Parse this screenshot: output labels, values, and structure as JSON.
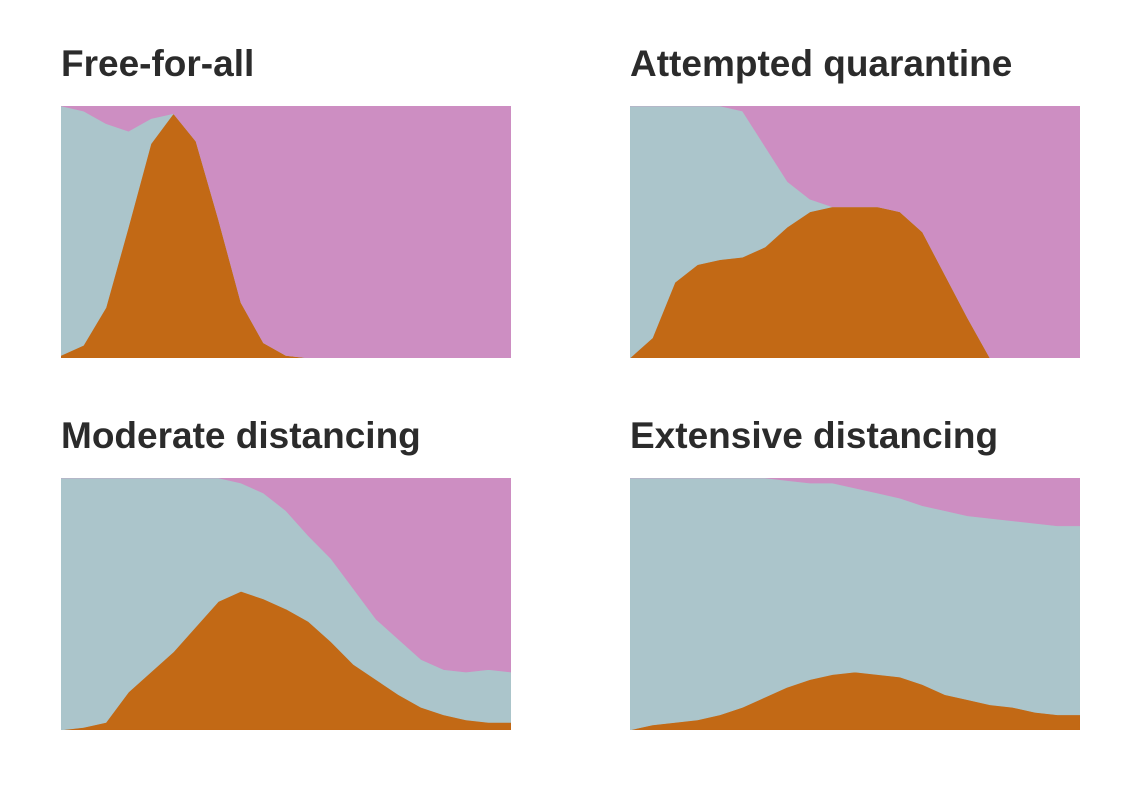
{
  "colors": {
    "sick": "#c26915",
    "healthy": "#abc5cb",
    "recovered": "#cd8ec2"
  },
  "chart_data": [
    {
      "type": "area",
      "stacked": true,
      "normalized": true,
      "title": "Free-for-all",
      "xlabel": "",
      "ylabel": "",
      "ylim": [
        0,
        1
      ],
      "grid": false,
      "x": [
        0,
        5,
        10,
        15,
        20,
        25,
        30,
        35,
        40,
        45,
        50,
        55,
        60,
        65,
        70,
        75,
        80,
        85,
        90,
        95,
        100
      ],
      "series": [
        {
          "values": [
            0.01,
            0.05,
            0.2,
            0.52,
            0.85,
            0.97,
            0.86,
            0.55,
            0.22,
            0.06,
            0.01,
            0.0,
            0.0,
            0.0,
            0.0,
            0.0,
            0.0,
            0.0,
            0.0,
            0.0,
            0.0
          ]
        },
        {
          "values": [
            0.99,
            0.93,
            0.73,
            0.38,
            0.1,
            0.0,
            0.0,
            0.0,
            0.0,
            0.0,
            0.0,
            0.0,
            0.0,
            0.0,
            0.0,
            0.0,
            0.0,
            0.0,
            0.0,
            0.0,
            0.0
          ]
        },
        {
          "values": [
            0.0,
            0.02,
            0.07,
            0.1,
            0.05,
            0.03,
            0.14,
            0.45,
            0.78,
            0.94,
            0.99,
            1.0,
            1.0,
            1.0,
            1.0,
            1.0,
            1.0,
            1.0,
            1.0,
            1.0,
            1.0
          ]
        }
      ]
    },
    {
      "type": "area",
      "stacked": true,
      "normalized": true,
      "title": "Attempted quarantine",
      "xlabel": "",
      "ylabel": "",
      "ylim": [
        0,
        1
      ],
      "grid": false,
      "x": [
        0,
        5,
        10,
        15,
        20,
        25,
        30,
        35,
        40,
        45,
        50,
        55,
        60,
        65,
        70,
        75,
        80,
        85,
        90,
        95,
        100
      ],
      "series": [
        {
          "values": [
            0.0,
            0.08,
            0.3,
            0.37,
            0.39,
            0.4,
            0.44,
            0.52,
            0.58,
            0.6,
            0.6,
            0.6,
            0.58,
            0.5,
            0.33,
            0.16,
            0.0,
            0.0,
            0.0,
            0.0,
            0.0
          ]
        },
        {
          "values": [
            1.0,
            0.92,
            0.7,
            0.63,
            0.61,
            0.58,
            0.4,
            0.18,
            0.05,
            0.0,
            0.0,
            0.0,
            0.0,
            0.0,
            0.0,
            0.0,
            0.0,
            0.0,
            0.0,
            0.0,
            0.0
          ]
        },
        {
          "values": [
            0.0,
            0.0,
            0.0,
            0.0,
            0.0,
            0.02,
            0.16,
            0.3,
            0.37,
            0.4,
            0.4,
            0.4,
            0.42,
            0.5,
            0.67,
            0.84,
            1.0,
            1.0,
            1.0,
            1.0,
            1.0
          ]
        }
      ]
    },
    {
      "type": "area",
      "stacked": true,
      "normalized": true,
      "title": "Moderate distancing",
      "xlabel": "",
      "ylabel": "",
      "ylim": [
        0,
        1
      ],
      "grid": false,
      "x": [
        0,
        5,
        10,
        15,
        20,
        25,
        30,
        35,
        40,
        45,
        50,
        55,
        60,
        65,
        70,
        75,
        80,
        85,
        90,
        95,
        100
      ],
      "series": [
        {
          "values": [
            0.0,
            0.01,
            0.03,
            0.15,
            0.23,
            0.31,
            0.41,
            0.51,
            0.55,
            0.52,
            0.48,
            0.43,
            0.35,
            0.26,
            0.2,
            0.14,
            0.09,
            0.06,
            0.04,
            0.03,
            0.03
          ]
        },
        {
          "values": [
            1.0,
            0.99,
            0.97,
            0.85,
            0.77,
            0.69,
            0.59,
            0.49,
            0.43,
            0.42,
            0.39,
            0.34,
            0.33,
            0.3,
            0.24,
            0.22,
            0.19,
            0.18,
            0.19,
            0.21,
            0.2
          ]
        },
        {
          "values": [
            0.0,
            0.0,
            0.0,
            0.0,
            0.0,
            0.0,
            0.0,
            0.0,
            0.02,
            0.06,
            0.13,
            0.23,
            0.32,
            0.44,
            0.56,
            0.64,
            0.72,
            0.76,
            0.77,
            0.76,
            0.77
          ]
        }
      ]
    },
    {
      "type": "area",
      "stacked": true,
      "normalized": true,
      "title": "Extensive distancing",
      "xlabel": "",
      "ylabel": "",
      "ylim": [
        0,
        1
      ],
      "grid": false,
      "x": [
        0,
        5,
        10,
        15,
        20,
        25,
        30,
        35,
        40,
        45,
        50,
        55,
        60,
        65,
        70,
        75,
        80,
        85,
        90,
        95,
        100
      ],
      "series": [
        {
          "values": [
            0.0,
            0.02,
            0.03,
            0.04,
            0.06,
            0.09,
            0.13,
            0.17,
            0.2,
            0.22,
            0.23,
            0.22,
            0.21,
            0.18,
            0.14,
            0.12,
            0.1,
            0.09,
            0.07,
            0.06,
            0.06
          ]
        },
        {
          "values": [
            1.0,
            0.98,
            0.97,
            0.96,
            0.94,
            0.91,
            0.87,
            0.82,
            0.78,
            0.76,
            0.73,
            0.72,
            0.71,
            0.71,
            0.73,
            0.73,
            0.74,
            0.74,
            0.75,
            0.75,
            0.75
          ]
        },
        {
          "values": [
            0.0,
            0.0,
            0.0,
            0.0,
            0.0,
            0.0,
            0.0,
            0.01,
            0.02,
            0.02,
            0.04,
            0.06,
            0.08,
            0.11,
            0.13,
            0.15,
            0.16,
            0.17,
            0.18,
            0.19,
            0.19
          ]
        }
      ]
    }
  ]
}
